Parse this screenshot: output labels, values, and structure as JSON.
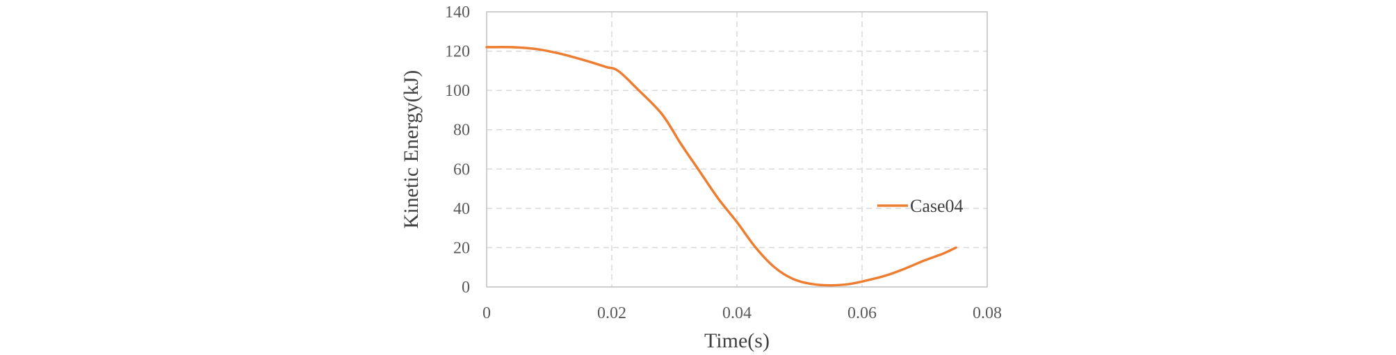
{
  "chart_data": {
    "type": "line",
    "xlabel": "Time(s)",
    "ylabel": "Kinetic Energy(kJ)",
    "xlim": [
      0,
      0.08
    ],
    "ylim": [
      0,
      140
    ],
    "x_ticks": [
      0,
      0.02,
      0.04,
      0.06,
      0.08
    ],
    "x_tick_labels": [
      "0",
      "0.02",
      "0.04",
      "0.06",
      "0.08"
    ],
    "y_ticks": [
      0,
      20,
      40,
      60,
      80,
      100,
      120,
      140
    ],
    "y_tick_labels": [
      "0",
      "20",
      "40",
      "60",
      "80",
      "100",
      "120",
      "140"
    ],
    "grid": true,
    "legend_position": "right",
    "series": [
      {
        "name": "Case04",
        "color": "#ed7d31",
        "x": [
          0,
          0.004,
          0.008,
          0.012,
          0.016,
          0.019,
          0.021,
          0.024,
          0.028,
          0.031,
          0.034,
          0.037,
          0.04,
          0.043,
          0.046,
          0.049,
          0.052,
          0.055,
          0.058,
          0.061,
          0.064,
          0.067,
          0.07,
          0.073,
          0.075
        ],
        "y": [
          122,
          122,
          121,
          118.5,
          115,
          112,
          110,
          101,
          88,
          73,
          59,
          45,
          33,
          20,
          10,
          4,
          1.5,
          0.8,
          1.5,
          3.5,
          6,
          9.5,
          13.5,
          17,
          20
        ]
      }
    ]
  }
}
